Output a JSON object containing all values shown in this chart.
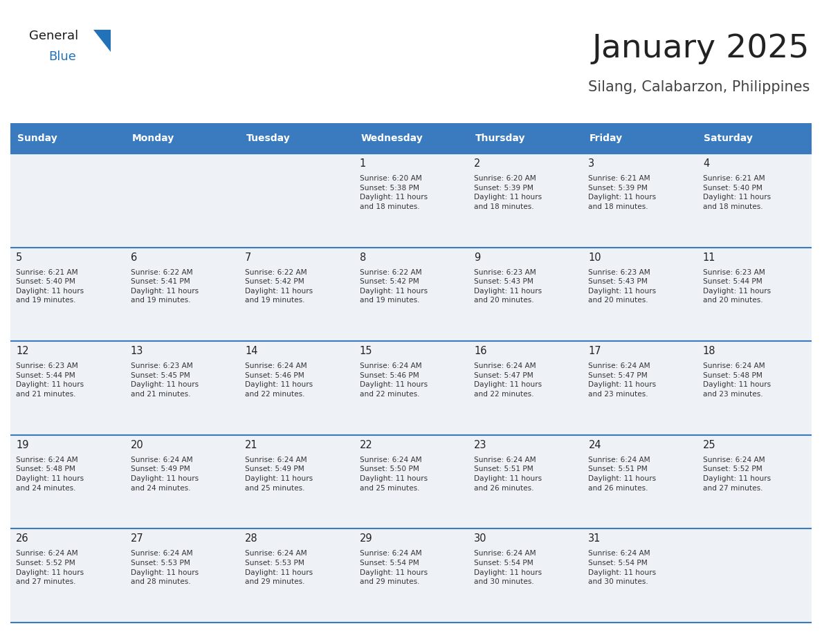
{
  "title": "January 2025",
  "subtitle": "Silang, Calabarzon, Philippines",
  "days_of_week": [
    "Sunday",
    "Monday",
    "Tuesday",
    "Wednesday",
    "Thursday",
    "Friday",
    "Saturday"
  ],
  "header_bg": "#3a7bbf",
  "header_text": "#ffffff",
  "cell_bg_light": "#eef2f7",
  "border_color": "#3a7bbf",
  "text_color": "#333333",
  "day_num_color": "#222222",
  "title_color": "#222222",
  "subtitle_color": "#444444",
  "logo_general_color": "#1a1a1a",
  "logo_blue_color": "#2272b9",
  "logo_triangle_color": "#2272b9",
  "calendar_data": [
    [
      null,
      null,
      null,
      {
        "day": 1,
        "sunrise": "6:20 AM",
        "sunset": "5:38 PM",
        "daylight": "11 hours\nand 18 minutes."
      },
      {
        "day": 2,
        "sunrise": "6:20 AM",
        "sunset": "5:39 PM",
        "daylight": "11 hours\nand 18 minutes."
      },
      {
        "day": 3,
        "sunrise": "6:21 AM",
        "sunset": "5:39 PM",
        "daylight": "11 hours\nand 18 minutes."
      },
      {
        "day": 4,
        "sunrise": "6:21 AM",
        "sunset": "5:40 PM",
        "daylight": "11 hours\nand 18 minutes."
      }
    ],
    [
      {
        "day": 5,
        "sunrise": "6:21 AM",
        "sunset": "5:40 PM",
        "daylight": "11 hours\nand 19 minutes."
      },
      {
        "day": 6,
        "sunrise": "6:22 AM",
        "sunset": "5:41 PM",
        "daylight": "11 hours\nand 19 minutes."
      },
      {
        "day": 7,
        "sunrise": "6:22 AM",
        "sunset": "5:42 PM",
        "daylight": "11 hours\nand 19 minutes."
      },
      {
        "day": 8,
        "sunrise": "6:22 AM",
        "sunset": "5:42 PM",
        "daylight": "11 hours\nand 19 minutes."
      },
      {
        "day": 9,
        "sunrise": "6:23 AM",
        "sunset": "5:43 PM",
        "daylight": "11 hours\nand 20 minutes."
      },
      {
        "day": 10,
        "sunrise": "6:23 AM",
        "sunset": "5:43 PM",
        "daylight": "11 hours\nand 20 minutes."
      },
      {
        "day": 11,
        "sunrise": "6:23 AM",
        "sunset": "5:44 PM",
        "daylight": "11 hours\nand 20 minutes."
      }
    ],
    [
      {
        "day": 12,
        "sunrise": "6:23 AM",
        "sunset": "5:44 PM",
        "daylight": "11 hours\nand 21 minutes."
      },
      {
        "day": 13,
        "sunrise": "6:23 AM",
        "sunset": "5:45 PM",
        "daylight": "11 hours\nand 21 minutes."
      },
      {
        "day": 14,
        "sunrise": "6:24 AM",
        "sunset": "5:46 PM",
        "daylight": "11 hours\nand 22 minutes."
      },
      {
        "day": 15,
        "sunrise": "6:24 AM",
        "sunset": "5:46 PM",
        "daylight": "11 hours\nand 22 minutes."
      },
      {
        "day": 16,
        "sunrise": "6:24 AM",
        "sunset": "5:47 PM",
        "daylight": "11 hours\nand 22 minutes."
      },
      {
        "day": 17,
        "sunrise": "6:24 AM",
        "sunset": "5:47 PM",
        "daylight": "11 hours\nand 23 minutes."
      },
      {
        "day": 18,
        "sunrise": "6:24 AM",
        "sunset": "5:48 PM",
        "daylight": "11 hours\nand 23 minutes."
      }
    ],
    [
      {
        "day": 19,
        "sunrise": "6:24 AM",
        "sunset": "5:48 PM",
        "daylight": "11 hours\nand 24 minutes."
      },
      {
        "day": 20,
        "sunrise": "6:24 AM",
        "sunset": "5:49 PM",
        "daylight": "11 hours\nand 24 minutes."
      },
      {
        "day": 21,
        "sunrise": "6:24 AM",
        "sunset": "5:49 PM",
        "daylight": "11 hours\nand 25 minutes."
      },
      {
        "day": 22,
        "sunrise": "6:24 AM",
        "sunset": "5:50 PM",
        "daylight": "11 hours\nand 25 minutes."
      },
      {
        "day": 23,
        "sunrise": "6:24 AM",
        "sunset": "5:51 PM",
        "daylight": "11 hours\nand 26 minutes."
      },
      {
        "day": 24,
        "sunrise": "6:24 AM",
        "sunset": "5:51 PM",
        "daylight": "11 hours\nand 26 minutes."
      },
      {
        "day": 25,
        "sunrise": "6:24 AM",
        "sunset": "5:52 PM",
        "daylight": "11 hours\nand 27 minutes."
      }
    ],
    [
      {
        "day": 26,
        "sunrise": "6:24 AM",
        "sunset": "5:52 PM",
        "daylight": "11 hours\nand 27 minutes."
      },
      {
        "day": 27,
        "sunrise": "6:24 AM",
        "sunset": "5:53 PM",
        "daylight": "11 hours\nand 28 minutes."
      },
      {
        "day": 28,
        "sunrise": "6:24 AM",
        "sunset": "5:53 PM",
        "daylight": "11 hours\nand 29 minutes."
      },
      {
        "day": 29,
        "sunrise": "6:24 AM",
        "sunset": "5:54 PM",
        "daylight": "11 hours\nand 29 minutes."
      },
      {
        "day": 30,
        "sunrise": "6:24 AM",
        "sunset": "5:54 PM",
        "daylight": "11 hours\nand 30 minutes."
      },
      {
        "day": 31,
        "sunrise": "6:24 AM",
        "sunset": "5:54 PM",
        "daylight": "11 hours\nand 30 minutes."
      },
      null
    ]
  ]
}
